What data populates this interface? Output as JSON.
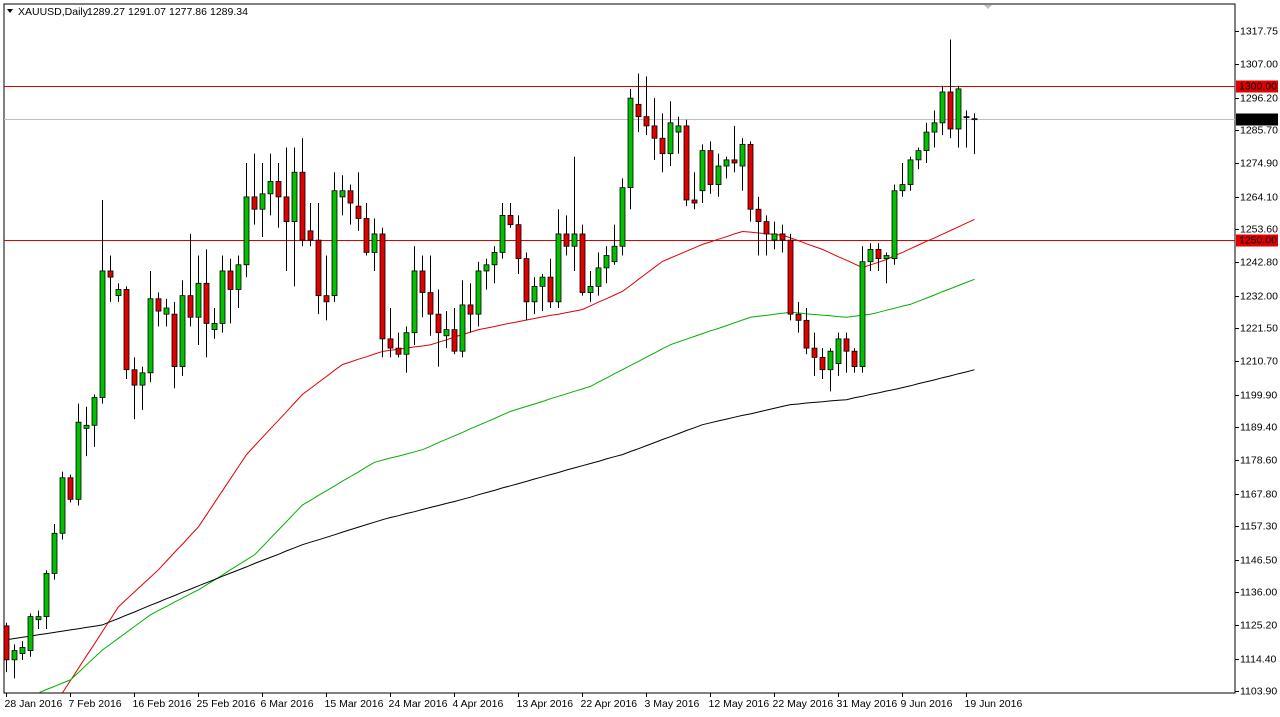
{
  "chart_data": {
    "type": "candlestick",
    "title": "XAUUSD,Daily",
    "categories": [
      "28 Jan 2016",
      null,
      null,
      null,
      null,
      null,
      null,
      null,
      "7 Feb 2016",
      null,
      null,
      null,
      null,
      null,
      null,
      null,
      "16 Feb 2016",
      null,
      null,
      null,
      null,
      null,
      null,
      null,
      "25 Feb 2016",
      null,
      null,
      null,
      null,
      null,
      null,
      null,
      "6 Mar 2016",
      null,
      null,
      null,
      null,
      null,
      null,
      null,
      "15 Mar 2016",
      null,
      null,
      null,
      null,
      null,
      null,
      null,
      "24 Mar 2016",
      null,
      null,
      null,
      null,
      null,
      null,
      null,
      "4 Apr 2016",
      null,
      null,
      null,
      null,
      null,
      null,
      null,
      "13 Apr 2016",
      null,
      null,
      null,
      null,
      null,
      null,
      null,
      "22 Apr 2016",
      null,
      null,
      null,
      null,
      null,
      null,
      null,
      "3 May 2016",
      null,
      null,
      null,
      null,
      null,
      null,
      null,
      "12 May 2016",
      null,
      null,
      null,
      null,
      null,
      null,
      null,
      "22 May 2016",
      null,
      null,
      null,
      null,
      null,
      null,
      null,
      "31 May 2016",
      null,
      null,
      null,
      null,
      null,
      null,
      null,
      "9 Jun 2016",
      null,
      null,
      null,
      null,
      null,
      null,
      null,
      "19 Jun 2016",
      null
    ],
    "open": [
      1125,
      1114,
      1116,
      1117,
      1127,
      1128,
      1142,
      1155,
      1173,
      1166,
      1189,
      1190,
      1199,
      1240,
      1232,
      1234,
      1208,
      1203,
      1207,
      1231,
      1226,
      1226,
      1209,
      1232,
      1225,
      1236,
      1221,
      1223,
      1240,
      1234,
      1242,
      1264,
      1260,
      1265,
      1269,
      1264,
      1256,
      1272,
      1253,
      1250,
      1232,
      1232,
      1264,
      1266,
      1261,
      1257,
      1246,
      1252,
      1218,
      1215,
      1213,
      1220,
      1240,
      1233,
      1226,
      1219,
      1221,
      1214,
      1229,
      1226,
      1240,
      1242,
      1246,
      1258,
      1255,
      1244,
      1230,
      1235,
      1238,
      1230,
      1252,
      1248,
      1252,
      1233,
      1235,
      1241,
      1243,
      1248,
      1267,
      1294,
      1290,
      1287,
      1283,
      1278,
      1285,
      1287,
      1263,
      1266,
      1279,
      1268,
      1274,
      1276,
      1274,
      1281,
      1260,
      1256,
      1250,
      1252,
      1250,
      1226,
      1224,
      1215,
      1212,
      1208,
      1210,
      1218,
      1214,
      1209,
      1243,
      1247,
      1244,
      1244,
      1266,
      1268,
      1276,
      1279,
      1285,
      1288,
      1298,
      1286,
      1290,
      1289.27
    ],
    "high": [
      1126,
      1119,
      1120,
      1129,
      1130,
      1143,
      1158,
      1175,
      1174,
      1197,
      1196,
      1200,
      1263,
      1245,
      1236,
      1235,
      1212,
      1209,
      1240,
      1233,
      1231,
      1230,
      1237,
      1252,
      1245,
      1247,
      1228,
      1245,
      1244,
      1245,
      1275,
      1278,
      1275,
      1278,
      1275,
      1280,
      1280,
      1283,
      1262,
      1262,
      1245,
      1272,
      1271,
      1268,
      1272,
      1262,
      1257,
      1254,
      1228,
      1220,
      1222,
      1248,
      1245,
      1245,
      1234,
      1227,
      1228,
      1237,
      1236,
      1243,
      1244,
      1248,
      1262,
      1262,
      1258,
      1246,
      1238,
      1239,
      1244,
      1260,
      1258,
      1277,
      1255,
      1240,
      1246,
      1248,
      1255,
      1270,
      1299,
      1304,
      1303,
      1296,
      1291,
      1295,
      1290,
      1289,
      1272,
      1281,
      1282,
      1278,
      1277,
      1287,
      1283,
      1282,
      1264,
      1258,
      1256,
      1255,
      1252,
      1230,
      1228,
      1220,
      1215,
      1215,
      1220,
      1220,
      1215,
      1248,
      1249,
      1249,
      1246,
      1268,
      1275,
      1277,
      1280,
      1288,
      1292,
      1300,
      1315,
      1300,
      1292,
      1291.07
    ],
    "low": [
      1110,
      1108,
      1114,
      1115,
      1124,
      1124,
      1140,
      1153,
      1165,
      1164,
      1180,
      1183,
      1197,
      1230,
      1230,
      1205,
      1192,
      1195,
      1204,
      1222,
      1222,
      1202,
      1206,
      1222,
      1216,
      1212,
      1218,
      1220,
      1223,
      1228,
      1238,
      1255,
      1251,
      1258,
      1254,
      1240,
      1235,
      1248,
      1248,
      1226,
      1224,
      1230,
      1258,
      1255,
      1253,
      1245,
      1240,
      1212,
      1212,
      1212,
      1207,
      1216,
      1225,
      1219,
      1209,
      1215,
      1213,
      1212,
      1220,
      1222,
      1234,
      1236,
      1244,
      1254,
      1239,
      1224,
      1226,
      1227,
      1228,
      1228,
      1245,
      1240,
      1232,
      1230,
      1232,
      1236,
      1242,
      1245,
      1260,
      1285,
      1284,
      1276,
      1272,
      1274,
      1278,
      1261,
      1260,
      1262,
      1265,
      1264,
      1270,
      1272,
      1266,
      1256,
      1245,
      1245,
      1247,
      1246,
      1224,
      1220,
      1213,
      1206,
      1205,
      1201,
      1206,
      1207,
      1207,
      1207,
      1240,
      1240,
      1236,
      1242,
      1264,
      1266,
      1273,
      1275,
      1280,
      1284,
      1283,
      1280,
      1280,
      1277.86
    ],
    "close": [
      1114,
      1117,
      1118,
      1128,
      1128,
      1142,
      1155,
      1173,
      1166,
      1191,
      1190,
      1199,
      1240,
      1238,
      1234,
      1208,
      1203,
      1207,
      1231,
      1227,
      1228,
      1209,
      1232,
      1225,
      1236,
      1223,
      1223,
      1240,
      1234,
      1242,
      1264,
      1260,
      1265,
      1269,
      1264,
      1256,
      1272,
      1250,
      1250,
      1232,
      1230,
      1266,
      1266,
      1262,
      1257,
      1246,
      1252,
      1218,
      1215,
      1213,
      1220,
      1240,
      1233,
      1226,
      1220,
      1221,
      1214,
      1229,
      1226,
      1240,
      1242,
      1246,
      1258,
      1255,
      1244,
      1230,
      1235,
      1238,
      1230,
      1252,
      1248,
      1252,
      1233,
      1235,
      1241,
      1245,
      1248,
      1267,
      1296,
      1290,
      1287,
      1283,
      1278,
      1288,
      1287,
      1263,
      1262,
      1279,
      1268,
      1274,
      1276,
      1275,
      1281,
      1260,
      1256,
      1252,
      1252,
      1250,
      1226,
      1224,
      1215,
      1212,
      1208,
      1214,
      1218,
      1214,
      1209,
      1243,
      1247,
      1244,
      1245,
      1266,
      1268,
      1276,
      1279,
      1285,
      1288,
      1298,
      1286,
      1299,
      1290,
      1289.34
    ],
    "up_color": "#00c000",
    "down_color": "#e00000",
    "series": [
      {
        "color": "#e00000",
        "values": [
          null,
          null,
          null,
          null,
          null,
          null,
          null,
          1103.3,
          1107.3,
          1111.3,
          1115.3,
          1119.2,
          1123.2,
          1127.2,
          1131.2,
          1133.6,
          1136.0,
          1138.4,
          1140.8,
          1143.2,
          1146.0,
          1148.8,
          1151.5,
          1154.3,
          1157.1,
          1161.0,
          1164.9,
          1168.8,
          1172.7,
          1176.6,
          1180.5,
          1183.3,
          1186.1,
          1188.9,
          1191.6,
          1194.4,
          1197.2,
          1200.0,
          1201.9,
          1203.9,
          1205.8,
          1207.8,
          1209.7,
          1210.5,
          1211.4,
          1212.2,
          1213.1,
          1213.9,
          1214.3,
          1214.6,
          1215.0,
          1215.4,
          1215.7,
          1216.1,
          1216.9,
          1217.7,
          1218.6,
          1219.4,
          1220.2,
          1221.0,
          1221.5,
          1222.0,
          1222.6,
          1223.1,
          1223.6,
          1224.1,
          1224.6,
          1225.1,
          1225.6,
          1226.0,
          1226.5,
          1227.0,
          1227.5,
          1228.7,
          1229.9,
          1231.0,
          1232.2,
          1233.4,
          1235.3,
          1237.3,
          1239.2,
          1241.2,
          1243.1,
          1244.2,
          1245.3,
          1246.4,
          1247.5,
          1248.6,
          1249.4,
          1250.3,
          1251.1,
          1252.0,
          1252.8,
          1252.6,
          1252.3,
          1252.1,
          1251.8,
          1251.6,
          1250.7,
          1249.8,
          1248.8,
          1247.9,
          1247.0,
          1245.8,
          1244.6,
          1243.5,
          1242.3,
          1241.1,
          1242.0,
          1242.8,
          1243.7,
          1244.9,
          1246.0,
          1247.2,
          1248.4,
          1249.6,
          1250.7,
          1251.9,
          1253.1,
          1254.3,
          1255.5,
          1256.7
        ]
      },
      {
        "color": "#00b000",
        "values": [
          null,
          null,
          null,
          null,
          1103.3,
          1104.4,
          1105.4,
          1106.5,
          1107.5,
          1109.9,
          1112.4,
          1114.8,
          1117.2,
          1119.1,
          1121.0,
          1122.9,
          1124.8,
          1126.7,
          1128.6,
          1130.0,
          1131.3,
          1132.7,
          1134.0,
          1135.4,
          1136.7,
          1138.3,
          1139.9,
          1141.5,
          1143.2,
          1144.8,
          1146.4,
          1148.0,
          1150.7,
          1153.4,
          1156.1,
          1158.8,
          1161.5,
          1164.2,
          1165.7,
          1167.3,
          1168.8,
          1170.3,
          1171.9,
          1173.4,
          1174.9,
          1176.5,
          1178.0,
          1178.7,
          1179.4,
          1180.0,
          1180.7,
          1181.4,
          1182.1,
          1183.2,
          1184.4,
          1185.5,
          1186.6,
          1187.7,
          1188.9,
          1190.0,
          1191.1,
          1192.2,
          1193.4,
          1194.5,
          1195.3,
          1196.1,
          1196.9,
          1197.7,
          1198.6,
          1199.4,
          1200.2,
          1201.0,
          1201.8,
          1202.6,
          1204.0,
          1205.3,
          1206.7,
          1208.0,
          1209.4,
          1210.7,
          1212.1,
          1213.4,
          1214.8,
          1216.1,
          1217.0,
          1217.9,
          1218.8,
          1219.7,
          1220.6,
          1221.4,
          1222.3,
          1223.2,
          1224.1,
          1225.0,
          1225.3,
          1225.6,
          1226.0,
          1226.3,
          1226.6,
          1226.4,
          1226.1,
          1225.9,
          1225.7,
          1225.5,
          1225.2,
          1225.0,
          1225.3,
          1225.7,
          1226.0,
          1226.6,
          1227.3,
          1227.9,
          1228.6,
          1229.2,
          1230.2,
          1231.2,
          1232.2,
          1233.3,
          1234.3,
          1235.3,
          1236.3,
          1237.3
        ]
      },
      {
        "color": "#000000",
        "values": [
          1120.5,
          1120.9,
          1121.3,
          1121.7,
          1122.1,
          1122.5,
          1122.9,
          1123.3,
          1123.7,
          1124.1,
          1124.5,
          1124.9,
          1125.3,
          1126.4,
          1127.4,
          1128.5,
          1129.5,
          1130.6,
          1131.7,
          1132.7,
          1133.8,
          1134.8,
          1135.9,
          1136.9,
          1138.0,
          1139.0,
          1140.0,
          1141.1,
          1142.1,
          1143.1,
          1144.1,
          1145.2,
          1146.2,
          1147.2,
          1148.2,
          1149.3,
          1150.3,
          1151.3,
          1152.1,
          1152.9,
          1153.7,
          1154.5,
          1155.4,
          1156.2,
          1157.0,
          1157.8,
          1158.6,
          1159.4,
          1160.1,
          1160.7,
          1161.4,
          1162.0,
          1162.7,
          1163.4,
          1164.0,
          1164.7,
          1165.3,
          1166.0,
          1166.7,
          1167.5,
          1168.2,
          1168.9,
          1169.7,
          1170.4,
          1171.1,
          1171.8,
          1172.6,
          1173.3,
          1174.0,
          1174.7,
          1175.5,
          1176.2,
          1176.9,
          1177.6,
          1178.3,
          1179.1,
          1179.8,
          1180.5,
          1181.5,
          1182.4,
          1183.4,
          1184.4,
          1185.4,
          1186.3,
          1187.3,
          1188.3,
          1189.2,
          1190.2,
          1190.8,
          1191.4,
          1192.0,
          1192.6,
          1193.2,
          1193.7,
          1194.3,
          1194.9,
          1195.5,
          1196.1,
          1196.7,
          1196.9,
          1197.2,
          1197.4,
          1197.6,
          1197.9,
          1198.1,
          1198.3,
          1198.9,
          1199.4,
          1200.0,
          1200.5,
          1201.1,
          1201.6,
          1202.2,
          1202.8,
          1203.5,
          1204.1,
          1204.7,
          1205.4,
          1206.0,
          1206.7,
          1207.3,
          1208.0
        ]
      }
    ],
    "hlines": [
      {
        "value": 1300,
        "label": "1300.00"
      },
      {
        "value": 1250,
        "label": "1250.00"
      }
    ],
    "hline_color": "#e00000",
    "ylim": [
      1103.25,
      1326.5
    ],
    "yticks": [
      {
        "value": 1317.75,
        "label": "1317.75"
      },
      {
        "value": 1307,
        "label": "1307.00"
      },
      {
        "value": 1296.2,
        "label": "1296.20"
      },
      {
        "value": 1285.7,
        "label": "1285.70"
      },
      {
        "value": 1274.9,
        "label": "1274.90"
      },
      {
        "value": 1264.1,
        "label": "1264.10"
      },
      {
        "value": 1253.6,
        "label": "1253.60"
      },
      {
        "value": 1242.8,
        "label": "1242.80"
      },
      {
        "value": 1232,
        "label": "1232.00"
      },
      {
        "value": 1221.5,
        "label": "1221.50"
      },
      {
        "value": 1210.7,
        "label": "1210.70"
      },
      {
        "value": 1199.9,
        "label": "1199.90"
      },
      {
        "value": 1189.4,
        "label": "1189.40"
      },
      {
        "value": 1178.6,
        "label": "1178.60"
      },
      {
        "value": 1167.8,
        "label": "1167.80"
      },
      {
        "value": 1157.3,
        "label": "1157.30"
      },
      {
        "value": 1146.5,
        "label": "1146.50"
      },
      {
        "value": 1136,
        "label": "1136.00"
      },
      {
        "value": 1125.2,
        "label": "1125.20"
      },
      {
        "value": 1114.4,
        "label": "1114.40"
      },
      {
        "value": 1103.9,
        "label": "1103.90"
      }
    ]
  }
}
